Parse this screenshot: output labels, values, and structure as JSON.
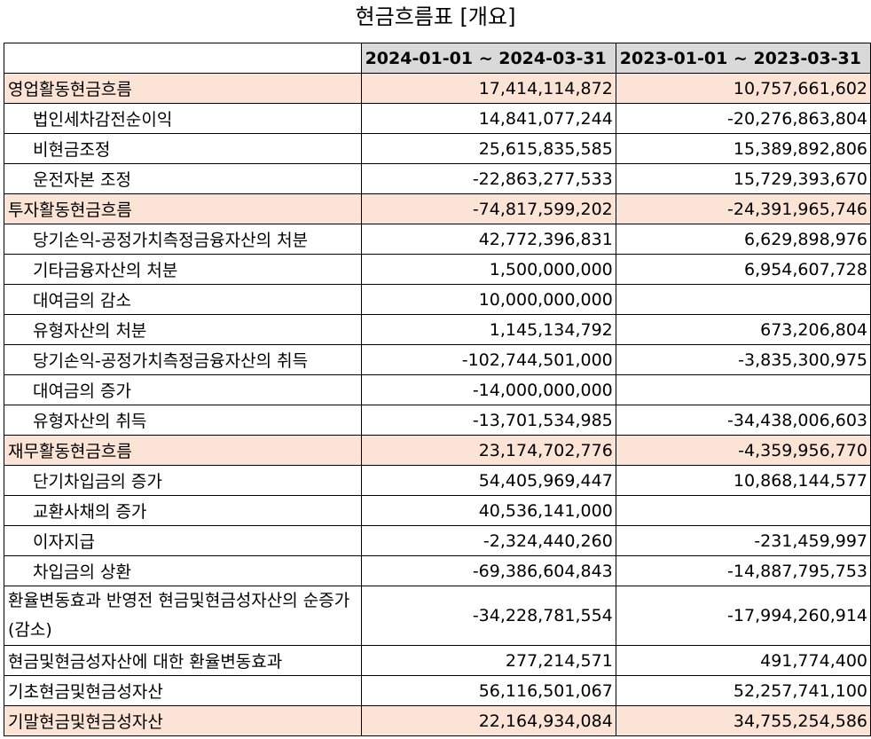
{
  "title": "현금흐름표 [개요]",
  "columns": [
    "",
    "2024-01-01 ~ 2024-03-31",
    "2023-01-01 ~ 2023-03-31"
  ],
  "rows": [
    {
      "label": "영업활동현금흐름",
      "v1": "17,414,114,872",
      "v2": "10,757,661,602",
      "kind": "section"
    },
    {
      "label": "법인세차감전순이익",
      "v1": "14,841,077,244",
      "v2": "-20,276,863,804",
      "kind": "item"
    },
    {
      "label": "비현금조정",
      "v1": "25,615,835,585",
      "v2": "15,389,892,806",
      "kind": "item"
    },
    {
      "label": "운전자본 조정",
      "v1": "-22,863,277,533",
      "v2": "15,729,393,670",
      "kind": "item"
    },
    {
      "label": "투자활동현금흐름",
      "v1": "-74,817,599,202",
      "v2": "-24,391,965,746",
      "kind": "section"
    },
    {
      "label": "당기손익-공정가치측정금융자산의 처분",
      "v1": "42,772,396,831",
      "v2": "6,629,898,976",
      "kind": "item"
    },
    {
      "label": "기타금융자산의 처분",
      "v1": "1,500,000,000",
      "v2": "6,954,607,728",
      "kind": "item"
    },
    {
      "label": "대여금의 감소",
      "v1": "10,000,000,000",
      "v2": "",
      "kind": "item"
    },
    {
      "label": "유형자산의 처분",
      "v1": "1,145,134,792",
      "v2": "673,206,804",
      "kind": "item"
    },
    {
      "label": "당기손익-공정가치측정금융자산의 취득",
      "v1": "-102,744,501,000",
      "v2": "-3,835,300,975",
      "kind": "item"
    },
    {
      "label": "대여금의 증가",
      "v1": "-14,000,000,000",
      "v2": "",
      "kind": "item"
    },
    {
      "label": "유형자산의 취득",
      "v1": "-13,701,534,985",
      "v2": "-34,438,006,603",
      "kind": "item"
    },
    {
      "label": "재무활동현금흐름",
      "v1": "23,174,702,776",
      "v2": "-4,359,956,770",
      "kind": "section"
    },
    {
      "label": "단기차입금의 증가",
      "v1": "54,405,969,447",
      "v2": "10,868,144,577",
      "kind": "item"
    },
    {
      "label": "교환사채의 증가",
      "v1": "40,536,141,000",
      "v2": "",
      "kind": "item"
    },
    {
      "label": "이자지급",
      "v1": "-2,324,440,260",
      "v2": "-231,459,997",
      "kind": "item"
    },
    {
      "label": "차입금의 상환",
      "v1": "-69,386,604,843",
      "v2": "-14,887,795,753",
      "kind": "item"
    },
    {
      "label": "환율변동효과 반영전 현금및현금성자산의 순증가(감소)",
      "v1": "-34,228,781,554",
      "v2": "-17,994,260,914",
      "kind": "plain-tall"
    },
    {
      "label": "현금및현금성자산에 대한 환율변동효과",
      "v1": "277,214,571",
      "v2": "491,774,400",
      "kind": "plain"
    },
    {
      "label": "기초현금및현금성자산",
      "v1": "56,116,501,067",
      "v2": "52,257,741,100",
      "kind": "plain"
    },
    {
      "label": "기말현금및현금성자산",
      "v1": "22,164,934,084",
      "v2": "34,755,254,586",
      "kind": "section"
    }
  ]
}
